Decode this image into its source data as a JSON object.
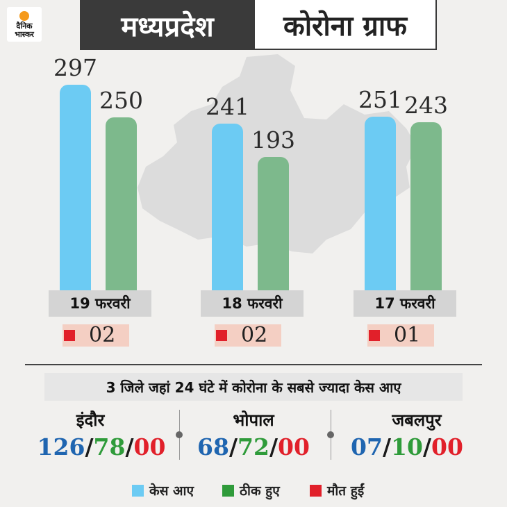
{
  "header": {
    "logo_line1": "दैनिक",
    "logo_line2": "भास्कर",
    "title_part1": "मध्यप्रदेश",
    "title_part2": "कोरोना ग्राफ"
  },
  "colors": {
    "cases": "#6ccbf3",
    "recovered": "#7db98c",
    "deaths": "#e1202a"
  },
  "chart_data": {
    "type": "bar",
    "categories": [
      "19 फरवरी",
      "18 फरवरी",
      "17 फरवरी"
    ],
    "series": [
      {
        "name": "केस आए",
        "values": [
          297,
          241,
          251
        ]
      },
      {
        "name": "ठीक हुए",
        "values": [
          250,
          193,
          243
        ]
      },
      {
        "name": "मौत हुईं",
        "values": [
          2,
          2,
          1
        ]
      }
    ],
    "value_labels_cases": [
      "297",
      "241",
      "251"
    ],
    "value_labels_recovered": [
      "250",
      "193",
      "243"
    ],
    "death_labels": [
      "02",
      "02",
      "01"
    ],
    "ylim": [
      0,
      320
    ],
    "grid": false,
    "legend_placement": "bottom"
  },
  "districts": {
    "title": "3 जिले जहां 24 घंटे में कोरोना के सबसे ज्यादा केस आए",
    "items": [
      {
        "name": "इंदौर",
        "cases": "126",
        "recovered": "78",
        "deaths": "00"
      },
      {
        "name": "भोपाल",
        "cases": "68",
        "recovered": "72",
        "deaths": "00"
      },
      {
        "name": "जबलपुर",
        "cases": "07",
        "recovered": "10",
        "deaths": "00"
      }
    ],
    "separator": "/"
  },
  "legend": {
    "cases_label": "केस आए",
    "recovered_label": "ठीक हुए",
    "deaths_label": "मौत हुईं"
  }
}
